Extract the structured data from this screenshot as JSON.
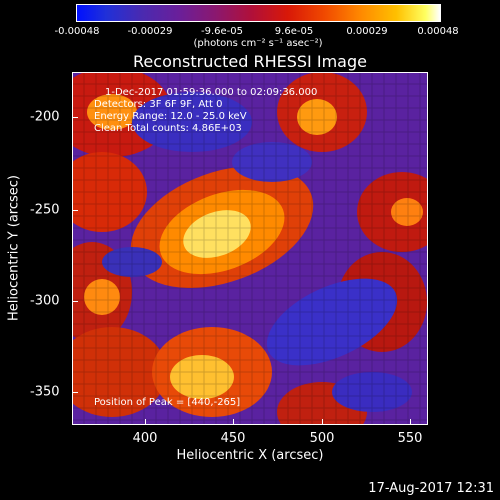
{
  "colorbar": {
    "ticks": [
      "-0.00048",
      "-0.00029",
      "-9.6e-05",
      "9.6e-05",
      "0.00029",
      "0.00048"
    ],
    "units": "(photons cm⁻² s⁻¹ asec⁻²)"
  },
  "title": "Reconstructed RHESSI Image",
  "annotations": {
    "time": "1-Dec-2017 01:59:36.000 to 02:09:36.000",
    "detectors": "Detectors: 3F 6F 9F, Att 0",
    "energy": "Energy Range: 12.0 - 25.0 keV",
    "clean": "Clean    Total counts: 4.86E+03",
    "peak": "Position of Peak = [440,-265]"
  },
  "axes": {
    "xlabel": "Heliocentric X (arcsec)",
    "ylabel": "Heliocentric Y (arcsec)",
    "xticks": [
      "400",
      "450",
      "500",
      "550"
    ],
    "yticks": [
      "-200",
      "-250",
      "-300",
      "-350"
    ]
  },
  "timestamp": "17-Aug-2017 12:31"
}
